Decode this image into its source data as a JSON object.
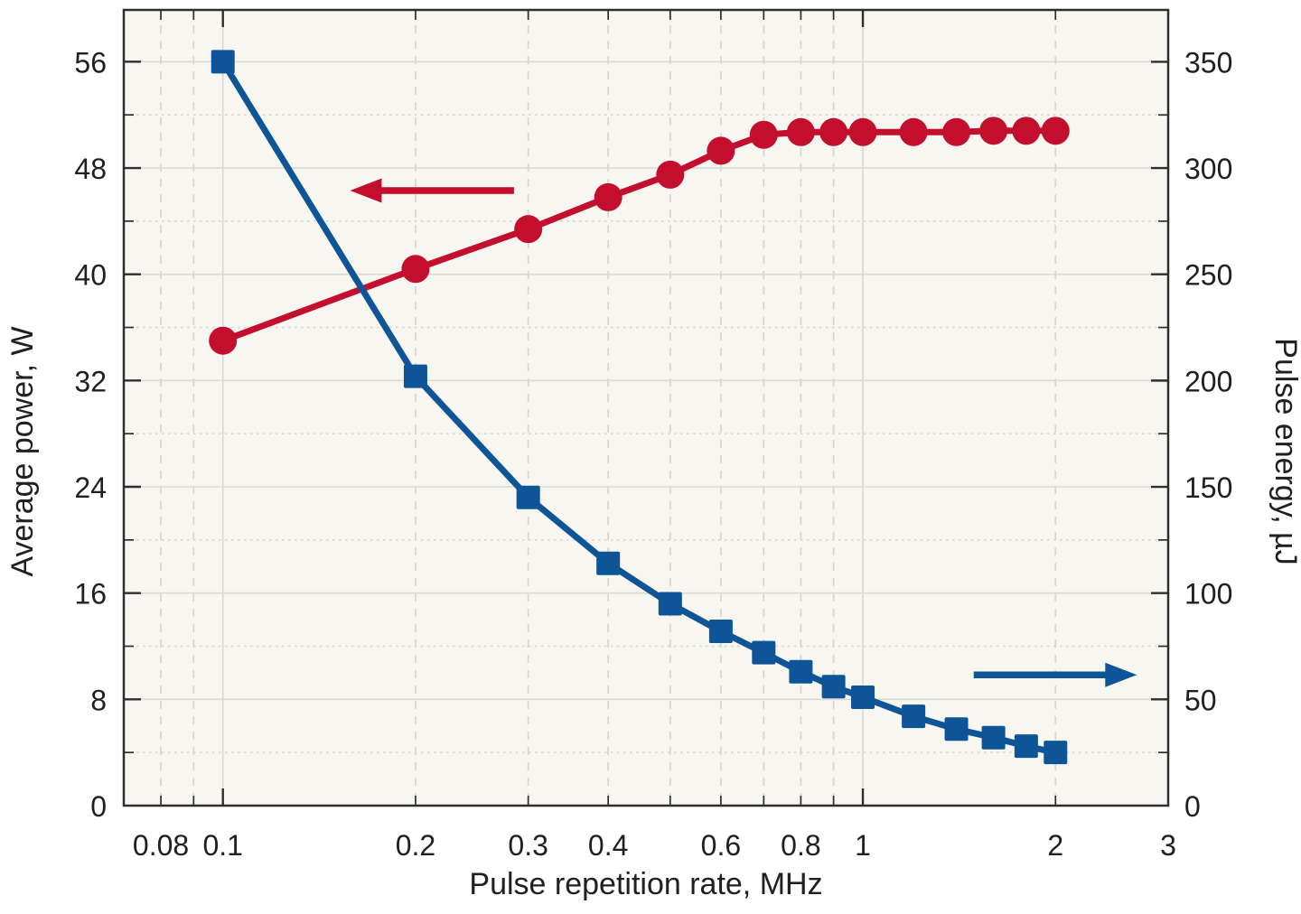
{
  "figure": {
    "background": "#ffffff",
    "plot_background": "#f7f6f0",
    "grid_major_color": "#d9d9d5",
    "grid_minor_color": "#d6d6d2",
    "axis_color": "#2e2e2e",
    "tick_text_color": "#202020"
  },
  "chart_data": {
    "type": "line",
    "title": "",
    "x_axis": {
      "label": "Pulse repetition rate, MHz",
      "scale": "log",
      "min": 0.07,
      "max": 3,
      "major_ticks": [
        0.1,
        1
      ],
      "minor_ticks": [
        0.08,
        0.09,
        0.2,
        0.3,
        0.4,
        0.5,
        0.6,
        0.7,
        0.8,
        0.9,
        2,
        3
      ],
      "tick_labels": [
        {
          "v": 0.08,
          "t": "0.08"
        },
        {
          "v": 0.1,
          "t": "0.1"
        },
        {
          "v": 0.2,
          "t": "0.2"
        },
        {
          "v": 0.3,
          "t": "0.3"
        },
        {
          "v": 0.4,
          "t": "0.4"
        },
        {
          "v": 0.6,
          "t": "0.6"
        },
        {
          "v": 0.8,
          "t": "0.8"
        },
        {
          "v": 1,
          "t": "1"
        },
        {
          "v": 2,
          "t": "2"
        },
        {
          "v": 3,
          "t": "3"
        }
      ]
    },
    "y_axis_left": {
      "label": "Average power, W",
      "color": "#c40e2e",
      "min": 0,
      "max": 59.9,
      "major_ticks": [
        8,
        16,
        24,
        32,
        40,
        48,
        56
      ],
      "minor_ticks": [
        4,
        12,
        20,
        28,
        36,
        44,
        52
      ],
      "tick_labels": [
        {
          "v": 0,
          "t": "0"
        },
        {
          "v": 8,
          "t": "8"
        },
        {
          "v": 16,
          "t": "16"
        },
        {
          "v": 24,
          "t": "24"
        },
        {
          "v": 32,
          "t": "32"
        },
        {
          "v": 40,
          "t": "40"
        },
        {
          "v": 48,
          "t": "48"
        },
        {
          "v": 56,
          "t": "56"
        }
      ]
    },
    "y_axis_right": {
      "label": "Pulse energy, µJ",
      "color": "#0d5596",
      "min": 0,
      "max": 374.4,
      "major_ticks": [
        50,
        100,
        150,
        200,
        250,
        300,
        350
      ],
      "minor_ticks": [
        25,
        75,
        125,
        175,
        225,
        275,
        325
      ],
      "tick_labels": [
        {
          "v": 0,
          "t": "0"
        },
        {
          "v": 50,
          "t": "50"
        },
        {
          "v": 100,
          "t": "100"
        },
        {
          "v": 150,
          "t": "150"
        },
        {
          "v": 200,
          "t": "200"
        },
        {
          "v": 250,
          "t": "250"
        },
        {
          "v": 300,
          "t": "300"
        },
        {
          "v": 350,
          "t": "350"
        }
      ]
    },
    "series": [
      {
        "name": "Average power",
        "axis": "left",
        "color": "#c40e2e",
        "marker": "circle",
        "marker_size": 31,
        "line_width": 7,
        "x": [
          0.1,
          0.2,
          0.3,
          0.4,
          0.5,
          0.6,
          0.7,
          0.8,
          0.9,
          1.0,
          1.2,
          1.4,
          1.6,
          1.8,
          2.0
        ],
        "values": [
          35.0,
          40.4,
          43.4,
          45.8,
          47.5,
          49.3,
          50.5,
          50.7,
          50.7,
          50.7,
          50.7,
          50.7,
          50.8,
          50.8,
          50.8
        ]
      },
      {
        "name": "Pulse energy",
        "axis": "right",
        "color": "#0d5596",
        "marker": "square",
        "marker_size": 26,
        "line_width": 7,
        "x": [
          0.1,
          0.2,
          0.3,
          0.4,
          0.5,
          0.6,
          0.7,
          0.8,
          0.9,
          1.0,
          1.2,
          1.4,
          1.6,
          1.8,
          2.0
        ],
        "values": [
          350,
          202,
          145,
          114,
          95,
          82,
          72,
          63,
          56,
          51,
          42,
          36,
          32,
          28,
          25
        ]
      }
    ],
    "annotations": [
      {
        "name": "left-axis-arrow",
        "type": "arrow",
        "direction": "left",
        "axis": "left",
        "color": "#c40e2e",
        "y_value": 46.3,
        "x_from": 0.285,
        "x_to": 0.158
      },
      {
        "name": "right-axis-arrow",
        "type": "arrow",
        "direction": "right",
        "axis": "right",
        "color": "#0d5596",
        "y_value": 61.5,
        "x_from": 1.49,
        "x_to": 2.68
      }
    ],
    "grid": {
      "shown": true,
      "major_style": "solid",
      "minor_style": "dashed"
    },
    "legend": "none"
  }
}
